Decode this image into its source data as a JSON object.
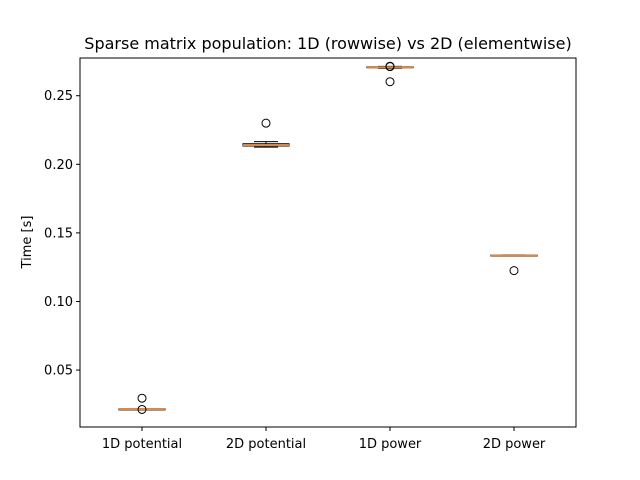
{
  "chart_data": {
    "type": "box",
    "title": "Sparse matrix population: 1D (rowwise) vs 2D (elementwise)",
    "xlabel": "",
    "ylabel": "Time [s]",
    "ylim": [
      0.0085,
      0.2775
    ],
    "yticks": [
      0.05,
      0.1,
      0.15,
      0.2,
      0.25
    ],
    "ytick_labels": [
      "0.05",
      "0.10",
      "0.15",
      "0.20",
      "0.25"
    ],
    "grid": false,
    "categories": [
      "1D potential",
      "2D potential",
      "1D power",
      "2D power"
    ],
    "boxes": [
      {
        "category": "1D potential",
        "whislo": 0.0213,
        "q1": 0.0215,
        "median": 0.0216,
        "q3": 0.0217,
        "whishi": 0.0219,
        "fliers": [
          0.0295,
          0.0213
        ]
      },
      {
        "category": "2D potential",
        "whislo": 0.2125,
        "q1": 0.2133,
        "median": 0.214,
        "q3": 0.215,
        "whishi": 0.2165,
        "fliers": [
          0.23
        ]
      },
      {
        "category": "1D power",
        "whislo": 0.27,
        "q1": 0.2705,
        "median": 0.2708,
        "q3": 0.2711,
        "whishi": 0.2714,
        "fliers": [
          0.2715,
          0.2712,
          0.2602
        ]
      },
      {
        "category": "2D power",
        "whislo": 0.1332,
        "q1": 0.1334,
        "median": 0.1336,
        "q3": 0.1338,
        "whishi": 0.134,
        "fliers": [
          0.1225
        ]
      }
    ],
    "colors": {
      "box": "#000000",
      "median": "#d98a4a",
      "flier": "#000000"
    }
  }
}
